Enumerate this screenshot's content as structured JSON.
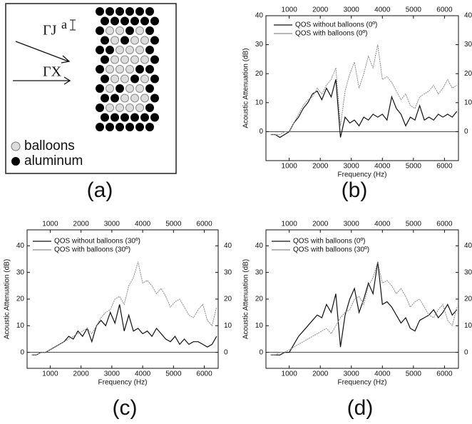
{
  "diagram": {
    "lattice_label": "a",
    "direction_1": "ΓJ",
    "direction_2": "ΓX",
    "legend": [
      "balloons",
      "aluminum"
    ],
    "panel_label": "(a)"
  },
  "chart_data": [
    {
      "type": "line",
      "panel_label": "(b)",
      "xlabel": "Frequency (Hz)",
      "ylabel": "Acoustic Attenuation (dB)",
      "x": [
        400,
        550,
        700,
        850,
        1000,
        1150,
        1300,
        1450,
        1600,
        1750,
        1900,
        2050,
        2200,
        2350,
        2500,
        2650,
        2800,
        2950,
        3100,
        3250,
        3400,
        3550,
        3700,
        3850,
        4000,
        4150,
        4300,
        4450,
        4600,
        4750,
        4900,
        5050,
        5200,
        5350,
        5500,
        5650,
        5800,
        5950,
        6100,
        6250,
        6400
      ],
      "xlim": [
        250,
        6450
      ],
      "ylim": [
        -10,
        40
      ],
      "xticks": [
        1000,
        2000,
        3000,
        4000,
        5000,
        6000
      ],
      "yticks": [
        0,
        10,
        20,
        30,
        40
      ],
      "series": [
        {
          "name": "QOS without balloons (0º)",
          "color": "#111111",
          "values": [
            -1,
            -1,
            -2,
            -1,
            0,
            3,
            5,
            8,
            10,
            13,
            14,
            11,
            15,
            12,
            18,
            -2,
            5,
            3,
            4,
            2,
            5,
            4,
            6,
            5,
            6,
            4,
            12,
            8,
            6,
            2,
            5,
            4,
            9,
            4,
            5,
            4,
            6,
            5,
            6,
            5,
            7
          ]
        },
        {
          "name": "QOS with balloons (0º)",
          "color": "#8a8a8a",
          "values": [
            -1,
            -1,
            -1,
            0,
            0,
            3,
            6,
            9,
            11,
            12,
            15,
            13,
            16,
            18,
            22,
            2,
            14,
            20,
            24,
            15,
            20,
            26,
            22,
            30,
            18,
            19,
            17,
            14,
            11,
            13,
            9,
            8,
            12,
            13,
            14,
            16,
            13,
            15,
            18,
            15,
            16
          ]
        }
      ]
    },
    {
      "type": "line",
      "panel_label": "(c)",
      "xlabel": "Frequency (Hz)",
      "ylabel": "Acoustic Attenuation (dB)",
      "x": [
        400,
        550,
        700,
        850,
        1000,
        1150,
        1300,
        1450,
        1600,
        1750,
        1900,
        2050,
        2200,
        2350,
        2500,
        2650,
        2800,
        2950,
        3100,
        3250,
        3400,
        3550,
        3700,
        3850,
        4000,
        4150,
        4300,
        4450,
        4600,
        4750,
        4900,
        5050,
        5200,
        5350,
        5500,
        5650,
        5800,
        5950,
        6100,
        6250,
        6400
      ],
      "xlim": [
        250,
        6450
      ],
      "ylim": [
        -6,
        46
      ],
      "xticks": [
        1000,
        2000,
        3000,
        4000,
        5000,
        6000
      ],
      "yticks": [
        0,
        10,
        20,
        30,
        40
      ],
      "series": [
        {
          "name": "QOS without balloons (30º)",
          "color": "#111111",
          "values": [
            -1,
            -1,
            0,
            0,
            1,
            2,
            3,
            4,
            6,
            5,
            8,
            6,
            9,
            4,
            10,
            12,
            10,
            15,
            11,
            18,
            8,
            14,
            8,
            9,
            7,
            8,
            6,
            9,
            7,
            5,
            4,
            6,
            3,
            5,
            3,
            4,
            4,
            3,
            2,
            3,
            6
          ]
        },
        {
          "name": "QOS with balloons (30º)",
          "color": "#8a8a8a",
          "values": [
            -1,
            -1,
            0,
            0,
            1,
            2,
            3,
            4,
            5,
            6,
            7,
            8,
            9,
            7,
            10,
            13,
            15,
            16,
            20,
            21,
            18,
            25,
            28,
            34,
            26,
            27,
            25,
            22,
            24,
            21,
            17,
            19,
            20,
            17,
            14,
            13,
            16,
            18,
            12,
            10,
            17
          ]
        }
      ]
    },
    {
      "type": "line",
      "panel_label": "(d)",
      "xlabel": "Frequency (Hz)",
      "ylabel": "Acoustic Attenuation (dB)",
      "x": [
        400,
        550,
        700,
        850,
        1000,
        1150,
        1300,
        1450,
        1600,
        1750,
        1900,
        2050,
        2200,
        2350,
        2500,
        2650,
        2800,
        2950,
        3100,
        3250,
        3400,
        3550,
        3700,
        3850,
        4000,
        4150,
        4300,
        4450,
        4600,
        4750,
        4900,
        5050,
        5200,
        5350,
        5500,
        5650,
        5800,
        5950,
        6100,
        6250,
        6400
      ],
      "xlim": [
        250,
        6450
      ],
      "ylim": [
        -6,
        46
      ],
      "xticks": [
        1000,
        2000,
        3000,
        4000,
        5000,
        6000
      ],
      "yticks": [
        0,
        10,
        20,
        30,
        40
      ],
      "series": [
        {
          "name": "QOS with balloons (0º)",
          "color": "#111111",
          "values": [
            -1,
            -1,
            -1,
            0,
            0,
            3,
            6,
            8,
            10,
            12,
            14,
            13,
            18,
            15,
            22,
            2,
            14,
            20,
            24,
            15,
            20,
            26,
            22,
            34,
            18,
            19,
            17,
            14,
            11,
            13,
            9,
            8,
            12,
            13,
            14,
            16,
            13,
            15,
            18,
            14,
            16
          ]
        },
        {
          "name": "QOS with balloons (30º)",
          "color": "#8a8a8a",
          "values": [
            -1,
            -1,
            0,
            0,
            1,
            2,
            3,
            4,
            5,
            6,
            7,
            8,
            9,
            7,
            10,
            13,
            15,
            16,
            20,
            21,
            18,
            25,
            28,
            34,
            26,
            27,
            25,
            22,
            24,
            21,
            17,
            19,
            20,
            17,
            14,
            13,
            16,
            18,
            12,
            10,
            17
          ]
        }
      ]
    }
  ]
}
